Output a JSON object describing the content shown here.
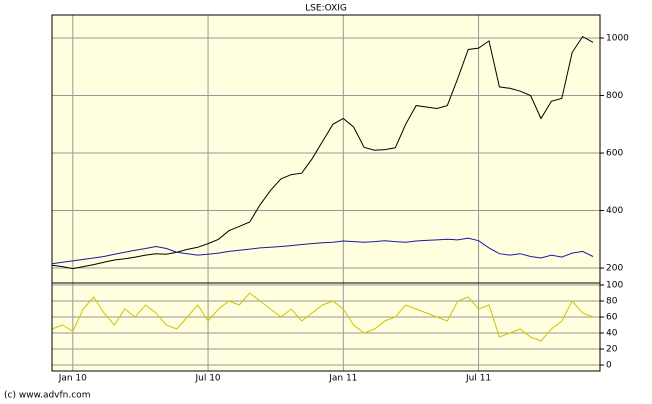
{
  "chart_data": [
    {
      "type": "line",
      "title": "LSE:OXIG",
      "series": [
        {
          "color": "#000000",
          "values": [
            210,
            205,
            198,
            205,
            212,
            220,
            228,
            232,
            238,
            245,
            250,
            248,
            255,
            265,
            272,
            285,
            300,
            330,
            345,
            360,
            420,
            470,
            510,
            525,
            530,
            580,
            640,
            700,
            720,
            690,
            620,
            610,
            612,
            618,
            700,
            765,
            760,
            755,
            765,
            860,
            960,
            965,
            990,
            830,
            825,
            815,
            800,
            720,
            780,
            790,
            950,
            1005,
            985
          ]
        },
        {
          "color": "#1a1aa0",
          "values": [
            215,
            220,
            225,
            230,
            235,
            240,
            248,
            255,
            262,
            268,
            275,
            268,
            255,
            250,
            245,
            248,
            252,
            258,
            262,
            266,
            270,
            272,
            275,
            278,
            282,
            285,
            288,
            290,
            294,
            292,
            290,
            292,
            295,
            292,
            290,
            294,
            296,
            298,
            300,
            298,
            304,
            295,
            270,
            250,
            245,
            250,
            240,
            235,
            245,
            238,
            252,
            258,
            240
          ]
        }
      ],
      "ylim": [
        148,
        1080
      ],
      "yticks": [
        200,
        400,
        600,
        800,
        1000
      ],
      "grid": true
    },
    {
      "type": "line",
      "categories": [
        null,
        null,
        "Jan 10",
        null,
        null,
        null,
        null,
        null,
        null,
        null,
        null,
        null,
        null,
        null,
        null,
        "Jul 10",
        null,
        null,
        null,
        null,
        null,
        null,
        null,
        null,
        null,
        null,
        null,
        null,
        "Jan 11",
        null,
        null,
        null,
        null,
        null,
        null,
        null,
        null,
        null,
        null,
        null,
        null,
        "Jul 11",
        null,
        null,
        null,
        null,
        null,
        null,
        null,
        null,
        null,
        null,
        null
      ],
      "series": [
        {
          "color": "#c8c800",
          "values": [
            45,
            50,
            42,
            70,
            85,
            65,
            50,
            70,
            60,
            75,
            65,
            50,
            45,
            60,
            75,
            55,
            70,
            80,
            75,
            90,
            80,
            70,
            60,
            70,
            55,
            65,
            75,
            80,
            70,
            50,
            40,
            45,
            55,
            60,
            75,
            70,
            65,
            60,
            55,
            80,
            85,
            70,
            75,
            35,
            40,
            45,
            35,
            30,
            45,
            55,
            80,
            65,
            60
          ]
        }
      ],
      "ylim": [
        -7.5,
        102.5
      ],
      "yticks": [
        0,
        20,
        40,
        60,
        80,
        100
      ],
      "grid": true,
      "footer": "(c) www.advfn.com"
    }
  ]
}
